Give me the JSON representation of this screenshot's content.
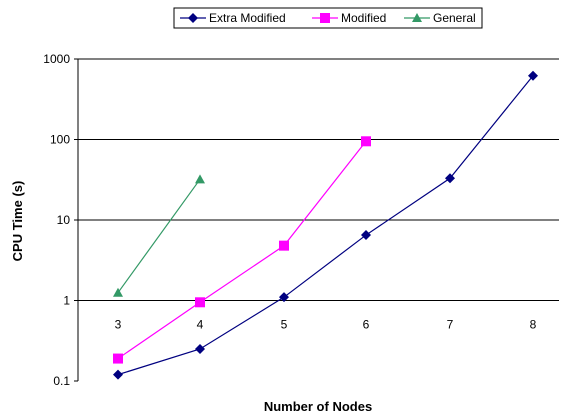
{
  "chart_data": {
    "type": "line",
    "xlabel": "Number of Nodes",
    "ylabel": "CPU Time (s)",
    "x_categories": [
      3,
      4,
      5,
      6,
      7,
      8
    ],
    "y_scale": "log",
    "ylim": [
      0.1,
      1000
    ],
    "y_ticks": [
      "0.1",
      "1",
      "10",
      "100",
      "1000"
    ],
    "grid": "horizontal major gridlines",
    "legend_position": "top",
    "series": [
      {
        "name": "Extra Modified",
        "color": "#000080",
        "marker": "diamond",
        "x": [
          3,
          4,
          5,
          6,
          7,
          8
        ],
        "y": [
          0.12,
          0.25,
          1.1,
          6.5,
          33,
          620
        ]
      },
      {
        "name": "Modified",
        "color": "#ff00ff",
        "marker": "square",
        "x": [
          3,
          4,
          5,
          6
        ],
        "y": [
          0.19,
          0.95,
          4.8,
          95
        ]
      },
      {
        "name": "General",
        "color": "#339966",
        "marker": "triangle",
        "x": [
          3,
          4
        ],
        "y": [
          1.25,
          32
        ]
      }
    ]
  }
}
